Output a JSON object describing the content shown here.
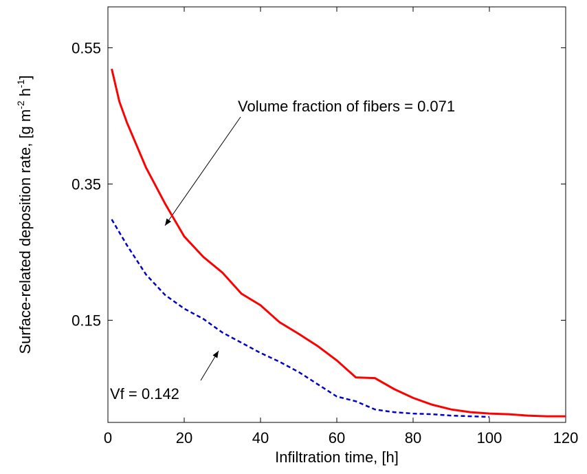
{
  "chart_data": {
    "type": "line",
    "xlabel": "Infiltration time, [h]",
    "ylabel": [
      "Surface-related deposition rate, [g m",
      "-2",
      " h",
      "-1",
      "]"
    ],
    "xlim": [
      0,
      120
    ],
    "xticks": [
      0,
      20,
      40,
      60,
      80,
      100,
      120
    ],
    "ylim": [
      0,
      0.61
    ],
    "yticks": [
      0.15,
      0.35,
      0.55
    ],
    "annotations": [
      "Volume fraction of fibers = 0.071",
      "Vf = 0.142"
    ],
    "series": [
      {
        "color": "#ff0000",
        "dash": false,
        "x": [
          1,
          3,
          5,
          10,
          15,
          20,
          25,
          30,
          35,
          40,
          45,
          50,
          55,
          60,
          65,
          70,
          75,
          80,
          85,
          90,
          95,
          100,
          105,
          110,
          115,
          120
        ],
        "values": [
          0.519,
          0.471,
          0.44,
          0.374,
          0.321,
          0.273,
          0.243,
          0.22,
          0.189,
          0.172,
          0.147,
          0.13,
          0.112,
          0.091,
          0.066,
          0.065,
          0.049,
          0.036,
          0.026,
          0.019,
          0.015,
          0.013,
          0.012,
          0.01,
          0.009,
          0.009
        ]
      },
      {
        "color": "#0000cc",
        "dash": true,
        "x": [
          1,
          5,
          10,
          15,
          20,
          25,
          30,
          35,
          40,
          45,
          50,
          55,
          60,
          65,
          70,
          75,
          80,
          85,
          90,
          95,
          100
        ],
        "values": [
          0.298,
          0.26,
          0.217,
          0.187,
          0.167,
          0.152,
          0.132,
          0.117,
          0.102,
          0.089,
          0.074,
          0.056,
          0.038,
          0.031,
          0.019,
          0.015,
          0.013,
          0.012,
          0.01,
          0.009,
          0.008
        ]
      }
    ]
  }
}
